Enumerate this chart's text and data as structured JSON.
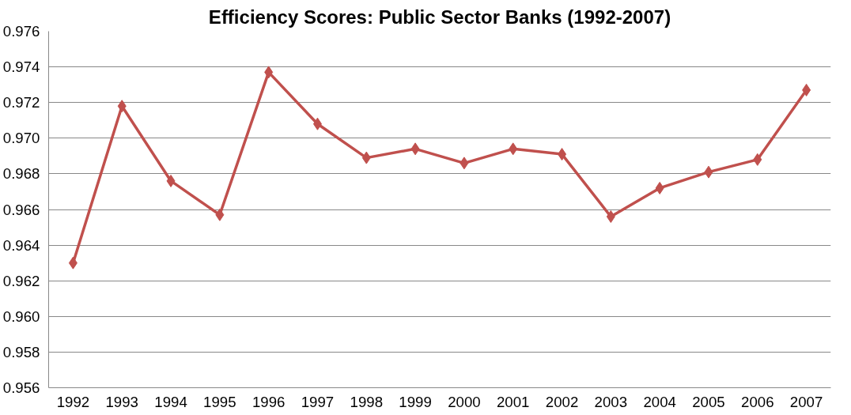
{
  "chart_data": {
    "type": "line",
    "title": "Efficiency Scores: Public Sector Banks (1992-2007)",
    "categories": [
      "1992",
      "1993",
      "1994",
      "1995",
      "1996",
      "1997",
      "1998",
      "1999",
      "2000",
      "2001",
      "2002",
      "2003",
      "2004",
      "2005",
      "2006",
      "2007"
    ],
    "series": [
      {
        "color": "#c0504d",
        "values": [
          0.963,
          0.9718,
          0.9676,
          0.9657,
          0.9737,
          0.9708,
          0.9689,
          0.9694,
          0.9686,
          0.9694,
          0.9691,
          0.9656,
          0.9672,
          0.9681,
          0.9688,
          0.9727
        ]
      }
    ],
    "ylim": [
      0.956,
      0.976
    ],
    "yticks": [
      {
        "value": 0.956,
        "label": "0.956"
      },
      {
        "value": 0.958,
        "label": "0.958"
      },
      {
        "value": 0.96,
        "label": "0.960"
      },
      {
        "value": 0.962,
        "label": "0.962"
      },
      {
        "value": 0.964,
        "label": "0.964"
      },
      {
        "value": 0.966,
        "label": "0.966"
      },
      {
        "value": 0.968,
        "label": "0.968"
      },
      {
        "value": 0.97,
        "label": "0.970"
      },
      {
        "value": 0.972,
        "label": "0.972"
      },
      {
        "value": 0.974,
        "label": "0.974"
      },
      {
        "value": 0.976,
        "label": "0.976"
      }
    ],
    "grid": "y",
    "marker": "diamond",
    "line_style": "solid"
  }
}
